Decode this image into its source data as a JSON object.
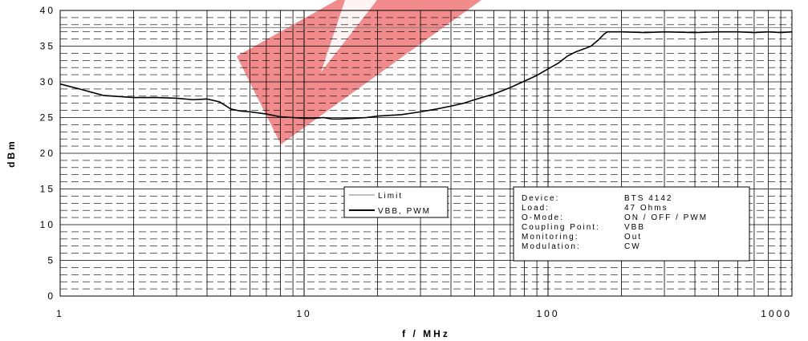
{
  "chart_data": {
    "type": "line",
    "xscale": "log",
    "xlim": [
      1,
      1000
    ],
    "ylim": [
      0,
      40
    ],
    "xlabel": "f / MHz",
    "ylabel": "dBm",
    "x_ticks": [
      "1",
      "10",
      "100",
      "1000"
    ],
    "y_ticks": [
      "0",
      "5",
      "10",
      "15",
      "20",
      "25",
      "30",
      "35",
      "40"
    ],
    "grid": true,
    "legend_position": "center-left",
    "series": [
      {
        "name": "Limit",
        "color": "#808080",
        "x": [
          1,
          1000
        ],
        "y": [
          37.6,
          37.6
        ]
      },
      {
        "name": "VBB, PWM",
        "color": "#000000",
        "x": [
          1,
          1.2,
          1.5,
          2,
          2.5,
          3,
          3.5,
          4,
          4.5,
          4.8,
          5,
          5.5,
          6,
          7,
          8,
          9,
          10,
          11,
          12,
          13,
          14,
          16,
          18,
          20,
          25,
          30,
          35,
          40,
          45,
          50,
          60,
          70,
          80,
          90,
          100,
          110,
          120,
          130,
          140,
          150,
          160,
          170,
          175,
          180,
          200,
          250,
          300,
          400,
          500,
          600,
          700,
          800,
          900,
          1000
        ],
        "y": [
          29.7,
          29.0,
          28.1,
          27.8,
          27.8,
          27.7,
          27.5,
          27.6,
          27.2,
          26.6,
          26.2,
          25.9,
          25.8,
          25.5,
          25.1,
          25.0,
          24.9,
          24.9,
          25.0,
          24.8,
          24.8,
          24.9,
          25.0,
          25.2,
          25.4,
          25.8,
          26.2,
          26.6,
          27.0,
          27.5,
          28.3,
          29.2,
          30.1,
          30.9,
          31.8,
          32.6,
          33.6,
          34.2,
          34.6,
          35.0,
          35.8,
          36.7,
          37.0,
          37.0,
          37.0,
          36.9,
          37.0,
          36.9,
          37.0,
          37.0,
          36.9,
          37.0,
          36.9,
          37.0
        ]
      }
    ]
  },
  "info_box": {
    "rows": [
      {
        "label": "Device:",
        "value": "BTS 4142"
      },
      {
        "label": "Load:",
        "value": "47 Ohms"
      },
      {
        "label": "O-Mode:",
        "value": "ON / OFF / PWM"
      },
      {
        "label": "Coupling Point:",
        "value": "VBB"
      },
      {
        "label": "Monitoring:",
        "value": "Out"
      },
      {
        "label": "Modulation:",
        "value": "CW"
      }
    ]
  }
}
